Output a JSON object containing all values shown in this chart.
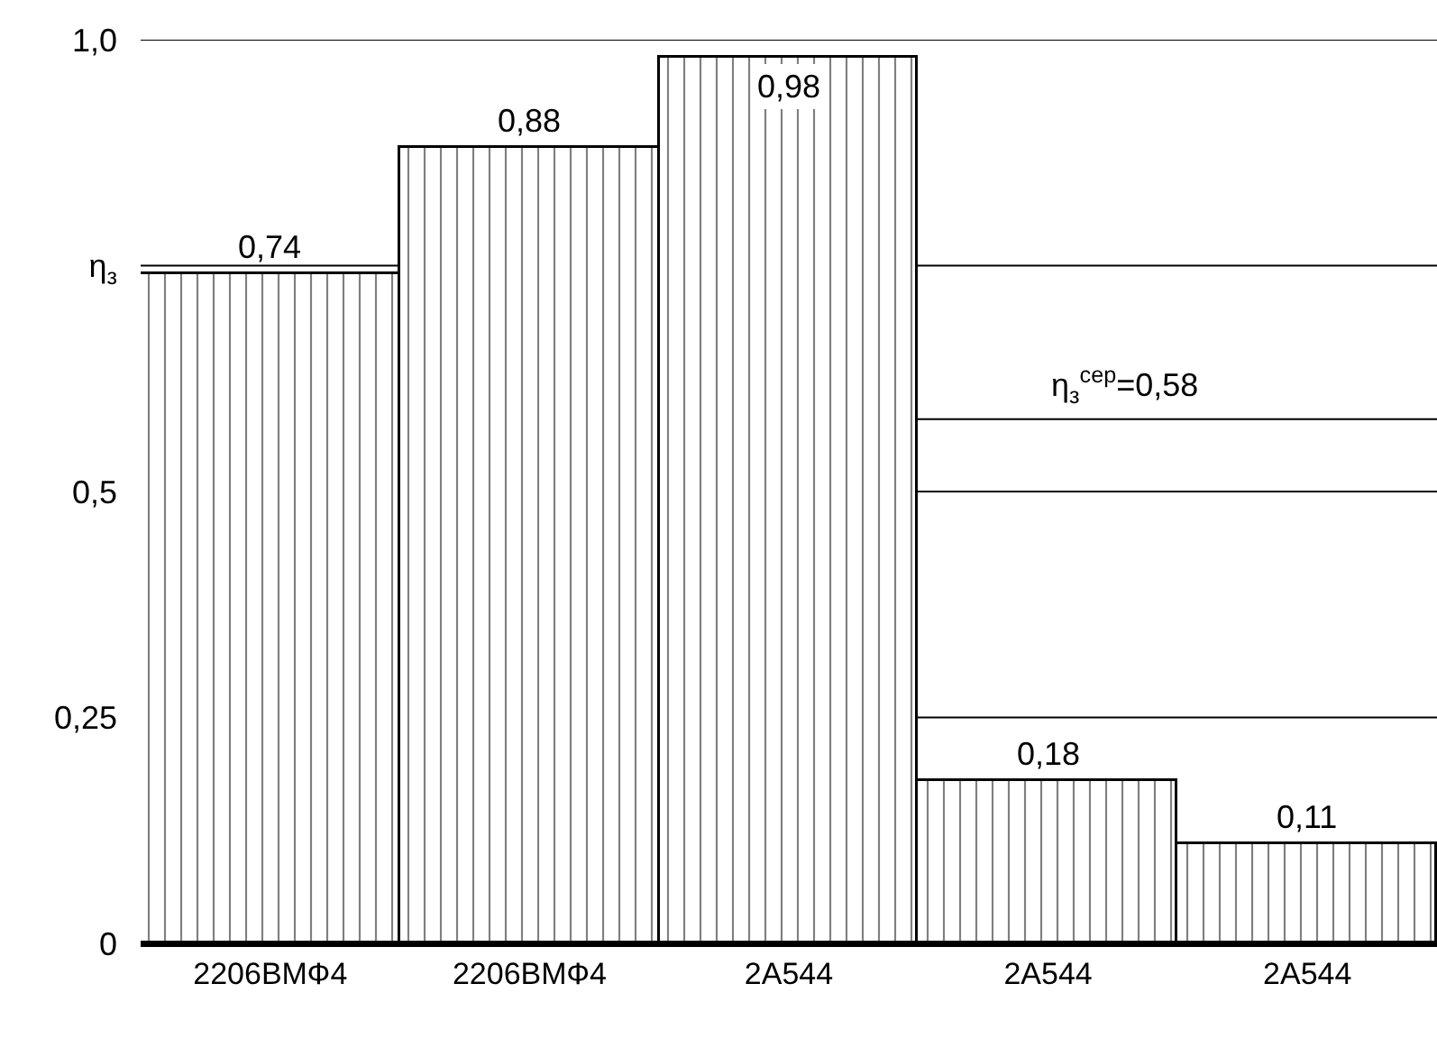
{
  "chart_data": {
    "type": "bar",
    "categories": [
      "2206ВМФ4",
      "2206ВМФ4",
      "2А544",
      "2А544",
      "2А544"
    ],
    "series": [
      {
        "color": "#000000",
        "values": [
          0.74,
          0.88,
          0.98,
          0.18,
          0.11
        ],
        "value_labels": [
          "0,74",
          "0,88",
          "0,98",
          "0,18",
          "0,11"
        ]
      }
    ],
    "ylim": [
      0,
      1.0
    ],
    "yticks": [
      {
        "value": 0,
        "label": "0"
      },
      {
        "value": 0.25,
        "label": "0,25"
      },
      {
        "value": 0.5,
        "label": "0,5"
      },
      {
        "value": 0.75,
        "label": "η$_{з}$"
      },
      {
        "value": 1.0,
        "label": "1,0"
      }
    ],
    "grid": "y",
    "ref_lines": [
      {
        "axis": "y",
        "value": 0.58,
        "label": "η$_{з}$$^{сер}$=0,58",
        "color": "#000000"
      }
    ]
  }
}
